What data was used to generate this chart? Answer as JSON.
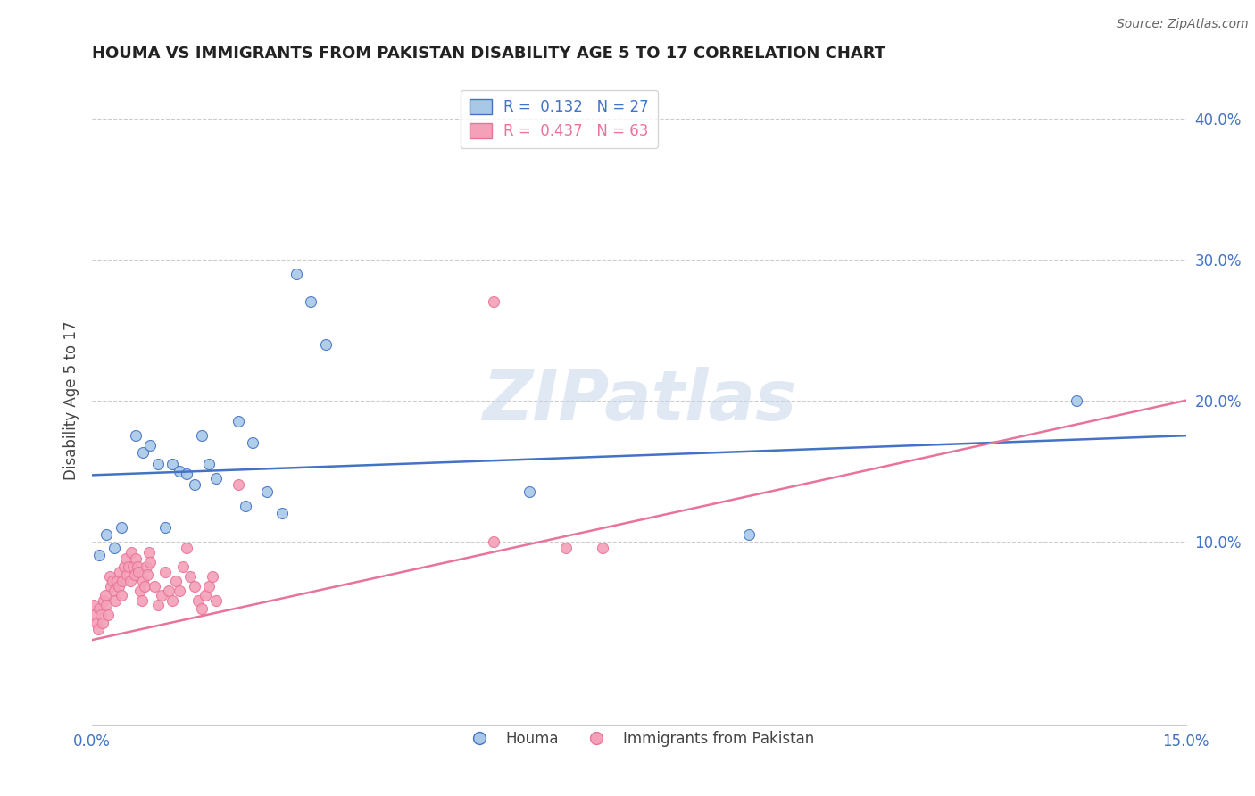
{
  "title": "HOUMA VS IMMIGRANTS FROM PAKISTAN DISABILITY AGE 5 TO 17 CORRELATION CHART",
  "source": "Source: ZipAtlas.com",
  "ylabel": "Disability Age 5 to 17",
  "xlim": [
    0.0,
    0.15
  ],
  "ylim": [
    -0.03,
    0.43
  ],
  "xticks": [
    0.0,
    0.05,
    0.1,
    0.15
  ],
  "xticklabels": [
    "0.0%",
    "",
    "",
    "15.0%"
  ],
  "yticks_right": [
    0.1,
    0.2,
    0.3,
    0.4
  ],
  "ytick_labels_right": [
    "10.0%",
    "20.0%",
    "30.0%",
    "40.0%"
  ],
  "watermark": "ZIPatlas",
  "houma_R": 0.132,
  "houma_N": 27,
  "pakistan_R": 0.437,
  "pakistan_N": 63,
  "houma_color": "#A8C8E8",
  "pakistan_color": "#F4A0B8",
  "houma_line_color": "#4472C4",
  "pakistan_line_color": "#E8749A",
  "houma_x": [
    0.001,
    0.002,
    0.003,
    0.004,
    0.006,
    0.007,
    0.008,
    0.009,
    0.01,
    0.011,
    0.012,
    0.013,
    0.014,
    0.015,
    0.016,
    0.017,
    0.02,
    0.021,
    0.022,
    0.024,
    0.026,
    0.028,
    0.03,
    0.032,
    0.06,
    0.09,
    0.135
  ],
  "houma_y": [
    0.09,
    0.105,
    0.095,
    0.11,
    0.175,
    0.163,
    0.168,
    0.155,
    0.11,
    0.155,
    0.15,
    0.148,
    0.14,
    0.175,
    0.155,
    0.145,
    0.185,
    0.125,
    0.17,
    0.135,
    0.12,
    0.29,
    0.27,
    0.24,
    0.135,
    0.105,
    0.2
  ],
  "pakistan_x": [
    0.0002,
    0.0004,
    0.0006,
    0.0008,
    0.001,
    0.0012,
    0.0014,
    0.0016,
    0.0018,
    0.002,
    0.0022,
    0.0024,
    0.0026,
    0.0028,
    0.003,
    0.0032,
    0.0034,
    0.0036,
    0.0038,
    0.004,
    0.0042,
    0.0044,
    0.0046,
    0.0048,
    0.005,
    0.0052,
    0.0054,
    0.0056,
    0.0058,
    0.006,
    0.0062,
    0.0064,
    0.0066,
    0.0068,
    0.007,
    0.0072,
    0.0074,
    0.0076,
    0.0078,
    0.008,
    0.0085,
    0.009,
    0.0095,
    0.01,
    0.0105,
    0.011,
    0.0115,
    0.012,
    0.0125,
    0.013,
    0.0135,
    0.014,
    0.0145,
    0.015,
    0.0155,
    0.016,
    0.0165,
    0.017,
    0.02,
    0.055,
    0.065,
    0.07,
    0.055
  ],
  "pakistan_y": [
    0.055,
    0.048,
    0.042,
    0.038,
    0.052,
    0.048,
    0.042,
    0.058,
    0.062,
    0.055,
    0.048,
    0.075,
    0.068,
    0.072,
    0.065,
    0.058,
    0.072,
    0.068,
    0.078,
    0.062,
    0.072,
    0.082,
    0.088,
    0.076,
    0.082,
    0.072,
    0.092,
    0.082,
    0.076,
    0.088,
    0.082,
    0.078,
    0.065,
    0.058,
    0.072,
    0.068,
    0.082,
    0.076,
    0.092,
    0.085,
    0.068,
    0.055,
    0.062,
    0.078,
    0.065,
    0.058,
    0.072,
    0.065,
    0.082,
    0.095,
    0.075,
    0.068,
    0.058,
    0.052,
    0.062,
    0.068,
    0.075,
    0.058,
    0.14,
    0.1,
    0.095,
    0.095,
    0.27
  ],
  "houma_trend_x": [
    0.0,
    0.15
  ],
  "houma_trend_y": [
    0.147,
    0.175
  ],
  "pakistan_trend_x": [
    0.0,
    0.15
  ],
  "pakistan_trend_y": [
    0.03,
    0.2
  ]
}
